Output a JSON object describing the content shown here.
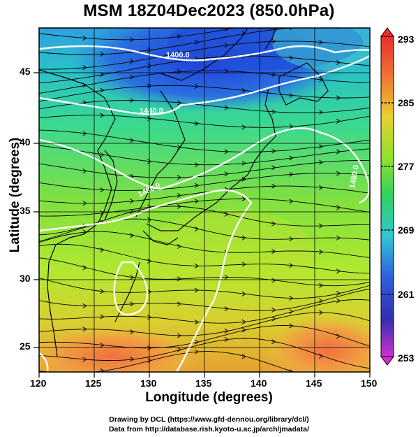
{
  "title": "MSM 18Z04Dec2023 (850.0hPa)",
  "xlabel": "Longitude (degrees)",
  "ylabel": "Latitude  (degrees)",
  "x_ticks": [
    "120",
    "125",
    "130",
    "135",
    "140",
    "145",
    "150"
  ],
  "y_ticks": [
    "25",
    "30",
    "35",
    "40",
    "45"
  ],
  "colorbar": {
    "labels": [
      "293",
      "285",
      "277",
      "269",
      "261",
      "253"
    ],
    "min": 253,
    "max": 293
  },
  "contours": [
    {
      "label": "1400.0"
    },
    {
      "label": "1440.0"
    },
    {
      "label": "1480.0"
    },
    {
      "label": "1480.0"
    }
  ],
  "footer": {
    "line1": "Drawing by DCL (https://www.gfd-dennou.org/library/dcl/)",
    "line2": "Data from http://database.rish.kyoto-u.ac.jp/arch/jmadata/"
  },
  "colors": {
    "cold": "#1e5adc",
    "mid": "#2ee0a0",
    "warm": "#e8c23a",
    "hot": "#e8502a",
    "contour": "#ffffff",
    "coast": "#000000"
  }
}
